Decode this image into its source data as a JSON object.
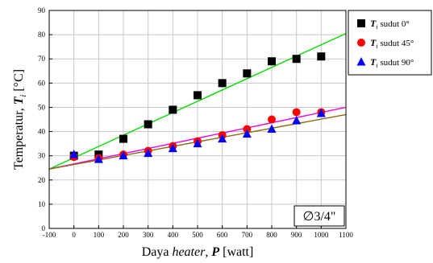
{
  "chart_data": {
    "type": "scatter",
    "xlabel": {
      "prefix": "Daya ",
      "italic": "heater",
      "mid": ", ",
      "bold_symbol": "P",
      "suffix": " [watt]"
    },
    "ylabel": {
      "prefix": "Temperatur, ",
      "bold_symbol": "T",
      "subscript": "i",
      "suffix": " [°C]"
    },
    "xlim": [
      -100,
      1100
    ],
    "ylim": [
      0,
      90
    ],
    "xticks": [
      -100,
      0,
      100,
      200,
      300,
      400,
      500,
      600,
      700,
      800,
      900,
      1000,
      1100
    ],
    "yticks": [
      0,
      10,
      20,
      30,
      40,
      50,
      60,
      70,
      80,
      90
    ],
    "grid": true,
    "legend_position": "top-right-outside",
    "annotation": "∅3/4\"",
    "series": [
      {
        "label_symbol": "T",
        "label_sub": "i",
        "label_text": " sudut 0°",
        "marker": "square",
        "color": "#000000",
        "x": [
          0,
          100,
          200,
          300,
          400,
          500,
          600,
          700,
          800,
          900,
          1000
        ],
        "y": [
          30,
          30.5,
          37,
          43,
          49,
          55,
          60,
          64,
          69,
          70,
          71
        ]
      },
      {
        "label_symbol": "T",
        "label_sub": "i",
        "label_text": " sudut 45°",
        "marker": "circle",
        "color": "#ff0000",
        "x": [
          0,
          100,
          200,
          300,
          400,
          500,
          600,
          700,
          800,
          900,
          1000
        ],
        "y": [
          29.5,
          29,
          30.5,
          32,
          34,
          36,
          38.5,
          41,
          45,
          48,
          48
        ]
      },
      {
        "label_symbol": "T",
        "label_sub": "i",
        "label_text": " sudut 90°",
        "marker": "triangle",
        "color": "#0000ff",
        "x": [
          0,
          100,
          200,
          300,
          400,
          500,
          600,
          700,
          800,
          900,
          1000
        ],
        "y": [
          30.5,
          28.5,
          30,
          31,
          33,
          35,
          37,
          39,
          41,
          44.5,
          47.5
        ]
      }
    ],
    "fit_lines": [
      {
        "color": "#00dd00",
        "x": [
          -100,
          1100
        ],
        "y": [
          24.5,
          80.5
        ]
      },
      {
        "color": "#ee00ee",
        "x": [
          -100,
          1100
        ],
        "y": [
          24.5,
          50
        ]
      },
      {
        "color": "#8b6914",
        "x": [
          -100,
          1100
        ],
        "y": [
          24.5,
          47
        ]
      }
    ]
  }
}
